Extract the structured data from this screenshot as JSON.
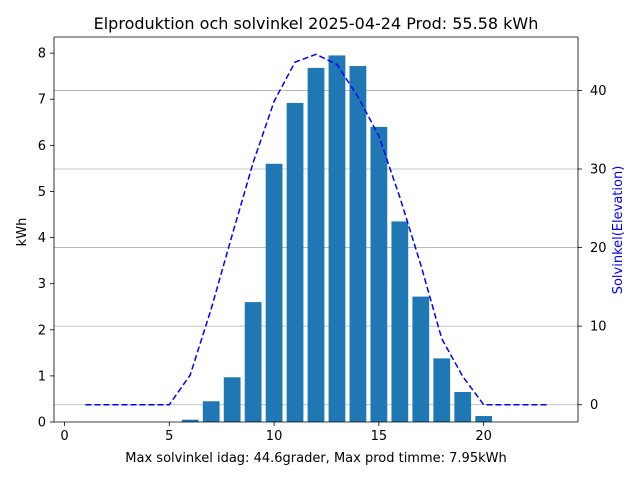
{
  "chart_data": {
    "type": "bar",
    "title": "Elproduktion och solvinkel 2025-04-24 Prod: 55.58 kWh",
    "xlabel": "Max solvinkel idag: 44.6grader, Max prod timme: 7.95kWh",
    "ylabel": "kWh",
    "y2label": "Solvinkel(Elevation)",
    "xlim": [
      -0.5,
      24.5
    ],
    "ylim": [
      0,
      8.35
    ],
    "y2lim": [
      -2.2,
      46.8
    ],
    "xticks": [
      0,
      5,
      10,
      15,
      20
    ],
    "yticks": [
      0,
      1,
      2,
      3,
      4,
      5,
      6,
      7,
      8
    ],
    "y2ticks": [
      0,
      10,
      20,
      30,
      40
    ],
    "grid": "horizontal lines at right-axis ticks",
    "bars": {
      "color": "#1f77b4",
      "x": [
        6,
        7,
        8,
        9,
        10,
        11,
        12,
        13,
        14,
        15,
        16,
        17,
        18,
        19,
        20
      ],
      "values": [
        0.05,
        0.45,
        0.97,
        2.6,
        5.6,
        6.92,
        7.68,
        7.95,
        7.72,
        6.4,
        4.35,
        2.72,
        1.38,
        0.65,
        0.13
      ]
    },
    "line": {
      "color": "#0000ff",
      "style": "dashed",
      "axis": "right",
      "x": [
        1,
        2,
        3,
        4,
        5,
        6,
        7,
        8,
        9,
        10,
        11,
        12,
        13,
        14,
        15,
        16,
        17,
        18,
        19,
        20,
        21,
        22,
        23
      ],
      "values": [
        0,
        0,
        0,
        0,
        0,
        3.8,
        12.2,
        21.6,
        30.8,
        38.6,
        43.6,
        44.6,
        43.3,
        39.2,
        34.2,
        26.4,
        17.8,
        8.4,
        3.6,
        0,
        0,
        0,
        0
      ]
    }
  }
}
